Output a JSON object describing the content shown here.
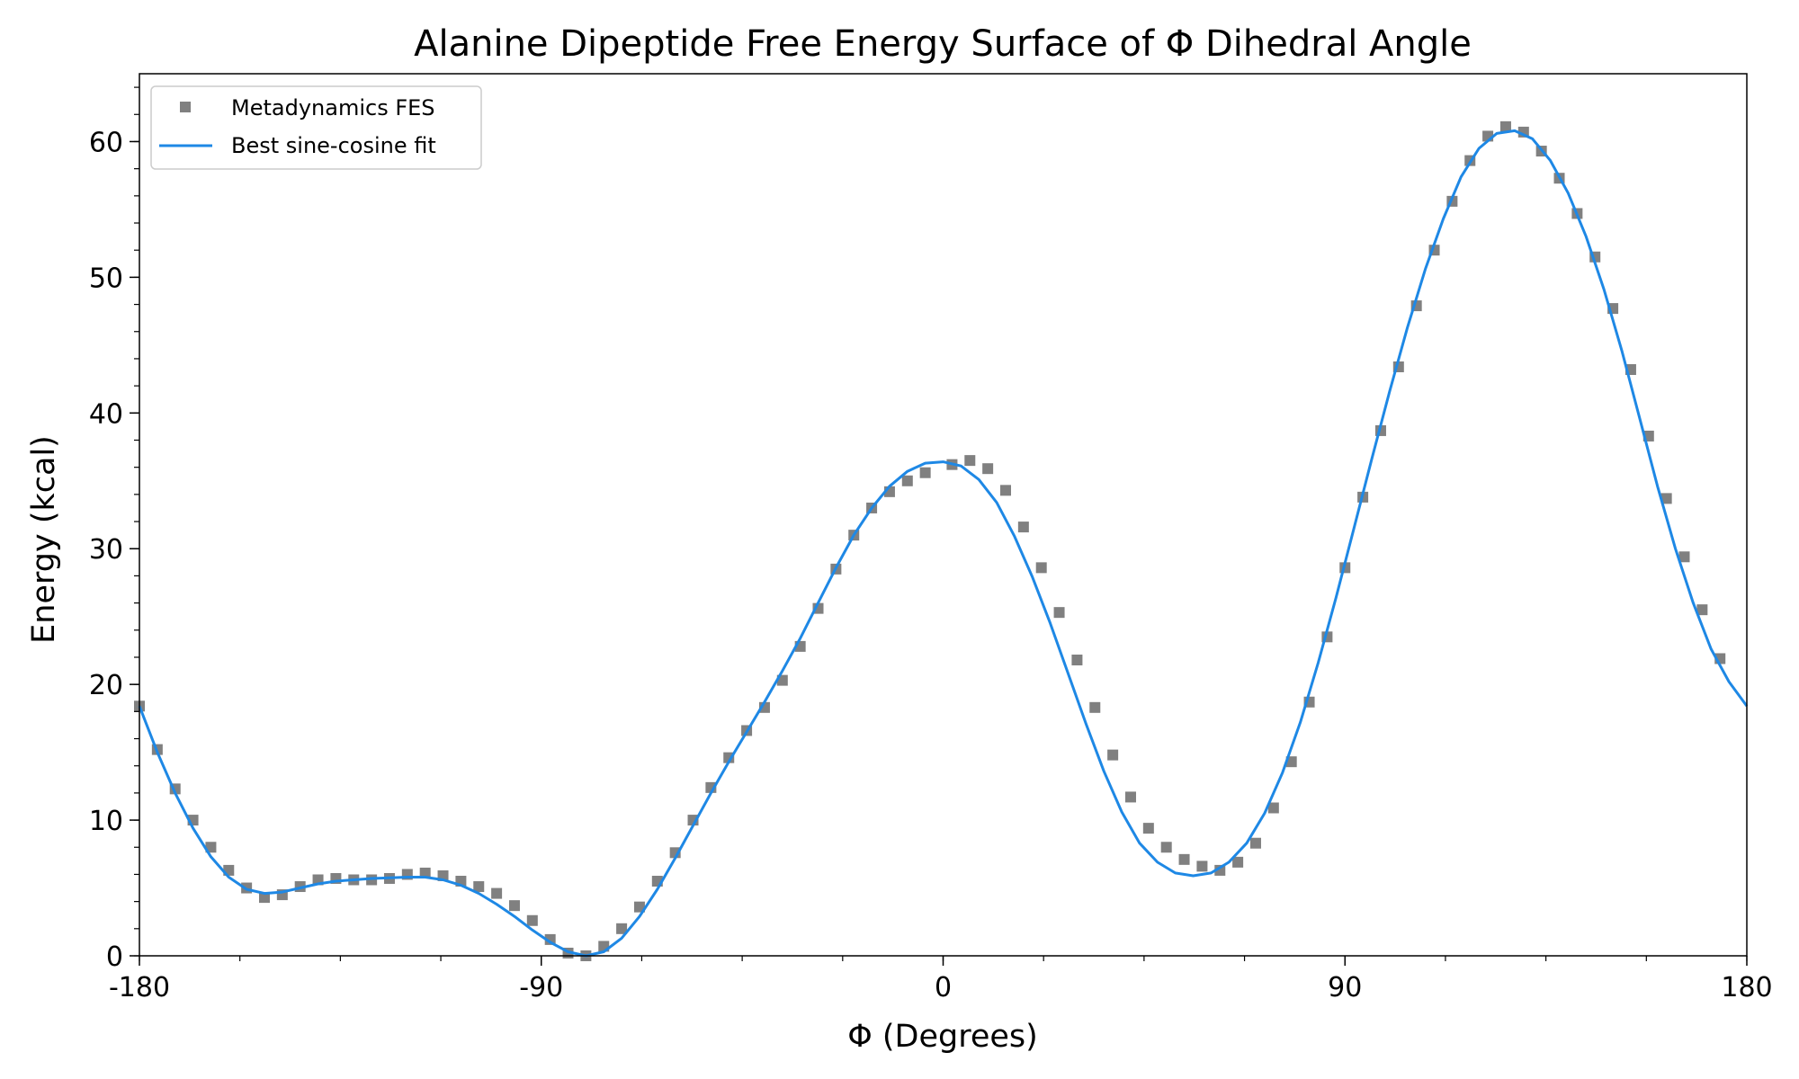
{
  "chart_data": {
    "type": "scatter",
    "title": "Alanine Dipeptide Free Energy Surface of Φ Dihedral Angle",
    "xlabel": "Φ (Degrees)",
    "ylabel": "Energy (kcal)",
    "xlim": [
      -180,
      180
    ],
    "ylim": [
      0,
      65
    ],
    "xticks": [
      -180,
      -90,
      0,
      90,
      180
    ],
    "xtick_labels": [
      "-180",
      "-90",
      "0",
      "90",
      "180"
    ],
    "yticks": [
      0,
      10,
      20,
      30,
      40,
      50,
      60
    ],
    "ytick_labels": [
      "0",
      "10",
      "20",
      "30",
      "40",
      "50",
      "60"
    ],
    "x_minor_step": 22.5,
    "y_minor_step": 2,
    "grid": false,
    "legend_position": "top-left",
    "series": [
      {
        "name": "Metadynamics FES",
        "kind": "scatter",
        "marker": "square",
        "color": "#808080",
        "points": [
          [
            -180,
            18.4
          ],
          [
            -176,
            15.2
          ],
          [
            -172,
            12.3
          ],
          [
            -168,
            10.0
          ],
          [
            -164,
            8.0
          ],
          [
            -160,
            6.3
          ],
          [
            -156,
            5.0
          ],
          [
            -152,
            4.3
          ],
          [
            -148,
            4.5
          ],
          [
            -144,
            5.1
          ],
          [
            -140,
            5.6
          ],
          [
            -136,
            5.7
          ],
          [
            -132,
            5.6
          ],
          [
            -128,
            5.6
          ],
          [
            -124,
            5.7
          ],
          [
            -120,
            6.0
          ],
          [
            -116,
            6.1
          ],
          [
            -112,
            5.9
          ],
          [
            -108,
            5.5
          ],
          [
            -104,
            5.1
          ],
          [
            -100,
            4.6
          ],
          [
            -96,
            3.7
          ],
          [
            -92,
            2.6
          ],
          [
            -88,
            1.2
          ],
          [
            -84,
            0.2
          ],
          [
            -80,
            0.0
          ],
          [
            -76,
            0.7
          ],
          [
            -72,
            2.0
          ],
          [
            -68,
            3.6
          ],
          [
            -64,
            5.5
          ],
          [
            -60,
            7.6
          ],
          [
            -56,
            10.0
          ],
          [
            -52,
            12.4
          ],
          [
            -48,
            14.6
          ],
          [
            -44,
            16.6
          ],
          [
            -40,
            18.3
          ],
          [
            -36,
            20.3
          ],
          [
            -32,
            22.8
          ],
          [
            -28,
            25.6
          ],
          [
            -24,
            28.5
          ],
          [
            -20,
            31.0
          ],
          [
            -16,
            33.0
          ],
          [
            -12,
            34.2
          ],
          [
            -8,
            35.0
          ],
          [
            -4,
            35.6
          ],
          [
            2,
            36.2
          ],
          [
            6,
            36.5
          ],
          [
            10,
            35.9
          ],
          [
            14,
            34.3
          ],
          [
            18,
            31.6
          ],
          [
            22,
            28.6
          ],
          [
            26,
            25.3
          ],
          [
            30,
            21.8
          ],
          [
            34,
            18.3
          ],
          [
            38,
            14.8
          ],
          [
            42,
            11.7
          ],
          [
            46,
            9.4
          ],
          [
            50,
            8.0
          ],
          [
            54,
            7.1
          ],
          [
            58,
            6.6
          ],
          [
            62,
            6.3
          ],
          [
            66,
            6.9
          ],
          [
            70,
            8.3
          ],
          [
            74,
            10.9
          ],
          [
            78,
            14.3
          ],
          [
            82,
            18.7
          ],
          [
            86,
            23.5
          ],
          [
            90,
            28.6
          ],
          [
            94,
            33.8
          ],
          [
            98,
            38.7
          ],
          [
            102,
            43.4
          ],
          [
            106,
            47.9
          ],
          [
            110,
            52.0
          ],
          [
            114,
            55.6
          ],
          [
            118,
            58.6
          ],
          [
            122,
            60.4
          ],
          [
            126,
            61.1
          ],
          [
            130,
            60.7
          ],
          [
            134,
            59.3
          ],
          [
            138,
            57.3
          ],
          [
            142,
            54.7
          ],
          [
            146,
            51.5
          ],
          [
            150,
            47.7
          ],
          [
            154,
            43.2
          ],
          [
            158,
            38.3
          ],
          [
            162,
            33.7
          ],
          [
            166,
            29.4
          ],
          [
            170,
            25.5
          ],
          [
            174,
            21.9
          ]
        ]
      },
      {
        "name": "Best sine-cosine fit",
        "kind": "line",
        "color": "#1e88e5",
        "points": [
          [
            -180,
            18.4
          ],
          [
            -176,
            15.0
          ],
          [
            -172,
            12.0
          ],
          [
            -168,
            9.4
          ],
          [
            -164,
            7.3
          ],
          [
            -160,
            5.8
          ],
          [
            -156,
            4.9
          ],
          [
            -152,
            4.6
          ],
          [
            -148,
            4.7
          ],
          [
            -144,
            5.0
          ],
          [
            -140,
            5.3
          ],
          [
            -136,
            5.5
          ],
          [
            -132,
            5.6
          ],
          [
            -128,
            5.7
          ],
          [
            -124,
            5.75
          ],
          [
            -120,
            5.8
          ],
          [
            -116,
            5.8
          ],
          [
            -112,
            5.6
          ],
          [
            -108,
            5.2
          ],
          [
            -104,
            4.6
          ],
          [
            -100,
            3.8
          ],
          [
            -96,
            2.9
          ],
          [
            -92,
            1.9
          ],
          [
            -88,
            1.0
          ],
          [
            -84,
            0.3
          ],
          [
            -80,
            0.0
          ],
          [
            -76,
            0.3
          ],
          [
            -72,
            1.3
          ],
          [
            -68,
            2.9
          ],
          [
            -64,
            4.9
          ],
          [
            -60,
            7.2
          ],
          [
            -56,
            9.6
          ],
          [
            -52,
            12.0
          ],
          [
            -48,
            14.3
          ],
          [
            -44,
            16.5
          ],
          [
            -40,
            18.7
          ],
          [
            -36,
            21.0
          ],
          [
            -32,
            23.4
          ],
          [
            -28,
            26.0
          ],
          [
            -24,
            28.6
          ],
          [
            -20,
            31.0
          ],
          [
            -16,
            33.0
          ],
          [
            -12,
            34.6
          ],
          [
            -8,
            35.7
          ],
          [
            -4,
            36.3
          ],
          [
            0,
            36.4
          ],
          [
            4,
            36.1
          ],
          [
            8,
            35.1
          ],
          [
            12,
            33.4
          ],
          [
            16,
            30.9
          ],
          [
            20,
            27.9
          ],
          [
            24,
            24.5
          ],
          [
            28,
            20.8
          ],
          [
            32,
            17.1
          ],
          [
            36,
            13.6
          ],
          [
            40,
            10.6
          ],
          [
            44,
            8.3
          ],
          [
            48,
            6.9
          ],
          [
            52,
            6.1
          ],
          [
            56,
            5.9
          ],
          [
            60,
            6.1
          ],
          [
            64,
            6.9
          ],
          [
            68,
            8.3
          ],
          [
            72,
            10.5
          ],
          [
            76,
            13.5
          ],
          [
            80,
            17.2
          ],
          [
            84,
            21.6
          ],
          [
            88,
            26.4
          ],
          [
            92,
            31.5
          ],
          [
            96,
            36.6
          ],
          [
            100,
            41.6
          ],
          [
            104,
            46.3
          ],
          [
            108,
            50.6
          ],
          [
            112,
            54.3
          ],
          [
            116,
            57.4
          ],
          [
            120,
            59.5
          ],
          [
            124,
            60.6
          ],
          [
            128,
            60.8
          ],
          [
            132,
            60.2
          ],
          [
            136,
            58.6
          ],
          [
            140,
            56.2
          ],
          [
            144,
            53.0
          ],
          [
            148,
            49.1
          ],
          [
            152,
            44.6
          ],
          [
            156,
            39.6
          ],
          [
            160,
            34.6
          ],
          [
            164,
            30.0
          ],
          [
            168,
            26.0
          ],
          [
            172,
            22.6
          ],
          [
            176,
            20.2
          ],
          [
            180,
            18.4
          ]
        ]
      }
    ]
  }
}
